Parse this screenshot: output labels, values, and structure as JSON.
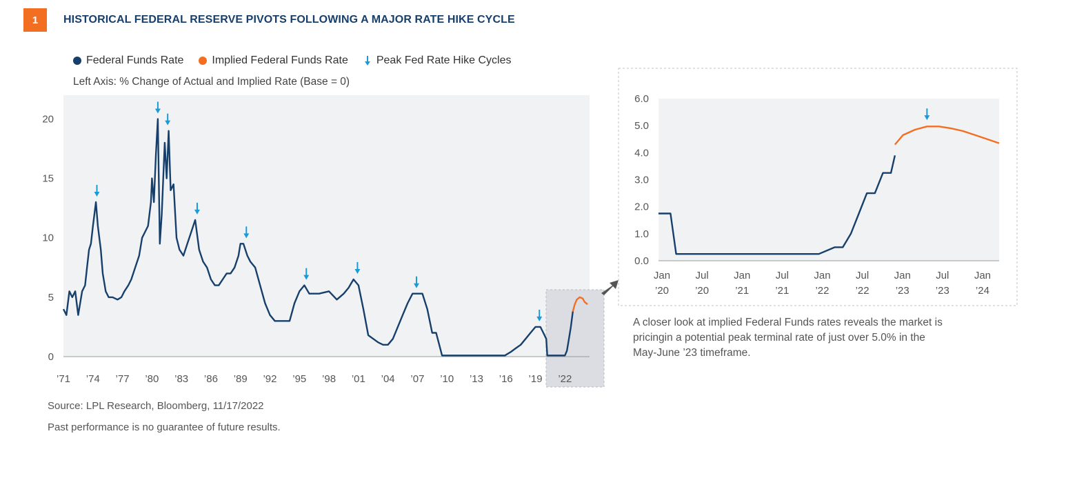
{
  "header": {
    "figure_number": "1",
    "title": "HISTORICAL FEDERAL RESERVE PIVOTS FOLLOWING A MAJOR RATE HIKE CYCLE"
  },
  "legend": {
    "items": [
      {
        "label": "Federal Funds Rate",
        "color": "#173f6b",
        "icon": "dot"
      },
      {
        "label": "Implied Federal Funds Rate",
        "color": "#f26f21",
        "icon": "dot"
      },
      {
        "label": "Peak Fed Rate Hike Cycles",
        "color": "#1a9bd7",
        "icon": "down-arrow-icon"
      }
    ]
  },
  "axis_note": "Left Axis: % Change of Actual and Implied Rate (Base = 0)",
  "source": "Source: LPL Research, Bloomberg,  11/17/2022",
  "disclaimer": "Past performance is no guarantee of future results.",
  "caption": "A closer look at implied Federal Funds rates reveals the market is pricingin a potential peak terminal rate of just over 5.0% in the May-June ’23 timeframe.",
  "colors": {
    "actual": "#173f6b",
    "implied": "#f26f21",
    "arrow": "#1a9bd7",
    "plot_bg": "#f1f2f4",
    "highlight": "#dcdde3"
  },
  "chart_data": [
    {
      "id": "main",
      "type": "line",
      "ylim": [
        0,
        22
      ],
      "yticks": [
        "0",
        "5",
        "10",
        "15",
        "20"
      ],
      "xticks": [
        "’71",
        "’74",
        "’77",
        "’80",
        "’83",
        "’86",
        "’89",
        "’92",
        "’95",
        "’98",
        "’01",
        "’04",
        "’07",
        "’10",
        "’13",
        "’16",
        "’19",
        "’22"
      ],
      "xlim": [
        1971,
        2024.5
      ],
      "series": [
        {
          "name": "Federal Funds Rate",
          "color": "#173f6b",
          "x": [
            1971.0,
            1971.3,
            1971.6,
            1971.9,
            1972.2,
            1972.5,
            1972.9,
            1973.2,
            1973.4,
            1973.6,
            1973.8,
            1974.0,
            1974.3,
            1974.5,
            1974.8,
            1975.0,
            1975.3,
            1975.6,
            1976.0,
            1976.5,
            1976.9,
            1977.2,
            1977.6,
            1977.9,
            1978.3,
            1978.7,
            1979.0,
            1979.3,
            1979.6,
            1979.9,
            1980.0,
            1980.2,
            1980.4,
            1980.6,
            1980.8,
            1981.0,
            1981.3,
            1981.5,
            1981.7,
            1981.9,
            1982.2,
            1982.5,
            1982.8,
            1983.2,
            1983.6,
            1984.0,
            1984.4,
            1984.8,
            1985.2,
            1985.6,
            1986.0,
            1986.4,
            1986.8,
            1987.2,
            1987.6,
            1988.0,
            1988.4,
            1988.8,
            1989.0,
            1989.3,
            1989.7,
            1990.0,
            1990.5,
            1991.0,
            1991.5,
            1992.0,
            1992.5,
            1993.0,
            1994.0,
            1994.5,
            1995.0,
            1995.5,
            1996.0,
            1997.0,
            1998.0,
            1998.8,
            1999.5,
            2000.0,
            2000.5,
            2001.0,
            2001.5,
            2002.0,
            2003.0,
            2003.5,
            2004.0,
            2004.5,
            2005.0,
            2005.5,
            2006.0,
            2006.5,
            2007.0,
            2007.5,
            2008.0,
            2008.5,
            2008.9,
            2009.5,
            2012.0,
            2015.9,
            2016.5,
            2017.0,
            2017.5,
            2018.0,
            2018.5,
            2019.0,
            2019.5,
            2019.8,
            2020.1,
            2020.2,
            2021.0,
            2022.0,
            2022.2,
            2022.4,
            2022.6,
            2022.8
          ],
          "values": [
            4.0,
            3.5,
            5.5,
            5.0,
            5.5,
            3.5,
            5.5,
            6.0,
            7.5,
            9.0,
            9.5,
            11.0,
            13.0,
            11.0,
            9.0,
            7.0,
            5.5,
            5.0,
            5.0,
            4.8,
            5.0,
            5.5,
            6.0,
            6.5,
            7.5,
            8.5,
            10.0,
            10.5,
            11.0,
            13.0,
            15.0,
            13.0,
            17.0,
            20.0,
            9.5,
            12.0,
            18.0,
            15.0,
            19.0,
            14.0,
            14.5,
            10.0,
            9.0,
            8.5,
            9.5,
            10.5,
            11.5,
            9.0,
            8.0,
            7.5,
            6.5,
            6.0,
            6.0,
            6.5,
            7.0,
            7.0,
            7.5,
            8.5,
            9.5,
            9.5,
            8.5,
            8.0,
            7.5,
            6.0,
            4.5,
            3.5,
            3.0,
            3.0,
            3.0,
            4.5,
            5.5,
            6.0,
            5.3,
            5.3,
            5.5,
            4.8,
            5.3,
            5.8,
            6.5,
            6.0,
            4.0,
            1.8,
            1.2,
            1.0,
            1.0,
            1.5,
            2.5,
            3.5,
            4.5,
            5.3,
            5.3,
            5.3,
            4.0,
            2.0,
            2.0,
            0.1,
            0.1,
            0.1,
            0.4,
            0.7,
            1.0,
            1.5,
            2.0,
            2.5,
            2.5,
            2.0,
            1.5,
            0.1,
            0.1,
            0.1,
            0.5,
            1.5,
            2.5,
            3.8
          ]
        },
        {
          "name": "Implied Federal Funds Rate",
          "color": "#f26f21",
          "x": [
            2022.8,
            2023.0,
            2023.2,
            2023.5,
            2023.8,
            2024.0,
            2024.3
          ],
          "values": [
            3.8,
            4.4,
            4.8,
            5.0,
            4.9,
            4.6,
            4.4
          ]
        }
      ],
      "peak_markers_x": [
        1974.4,
        1980.6,
        1981.6,
        1984.6,
        1989.6,
        1995.7,
        2000.9,
        2006.9,
        2019.4
      ]
    },
    {
      "id": "inset",
      "type": "line",
      "ylim": [
        0,
        6
      ],
      "yticks": [
        "0.0",
        "1.0",
        "2.0",
        "3.0",
        "4.0",
        "5.0",
        "6.0"
      ],
      "xticks": [
        [
          "Jan",
          "’20"
        ],
        [
          "Jul",
          "’20"
        ],
        [
          "Jan",
          "’21"
        ],
        [
          "Jul",
          "’21"
        ],
        [
          "Jan",
          "’22"
        ],
        [
          "Jul",
          "’22"
        ],
        [
          "Jan",
          "’23"
        ],
        [
          "Jul",
          "’23"
        ],
        [
          "Jan",
          "’24"
        ]
      ],
      "xlim": [
        2020.0,
        2024.25
      ],
      "series": [
        {
          "name": "Federal Funds Rate",
          "color": "#173f6b",
          "x": [
            2020.0,
            2020.15,
            2020.22,
            2022.0,
            2022.2,
            2022.3,
            2022.4,
            2022.5,
            2022.6,
            2022.7,
            2022.8,
            2022.9,
            2022.95
          ],
          "values": [
            1.75,
            1.75,
            0.25,
            0.25,
            0.5,
            0.5,
            1.0,
            1.75,
            2.5,
            2.5,
            3.25,
            3.25,
            3.9
          ]
        },
        {
          "name": "Implied Federal Funds Rate",
          "color": "#f26f21",
          "x": [
            2022.95,
            2023.05,
            2023.2,
            2023.35,
            2023.5,
            2023.65,
            2023.8,
            2024.0,
            2024.25
          ],
          "values": [
            4.3,
            4.65,
            4.85,
            4.97,
            4.97,
            4.9,
            4.8,
            4.6,
            4.35
          ]
        }
      ],
      "peak_markers_x": [
        2023.35
      ]
    }
  ],
  "xtick_labels": {
    "inset_jan": "Jan",
    "inset_jul": "Jul"
  }
}
